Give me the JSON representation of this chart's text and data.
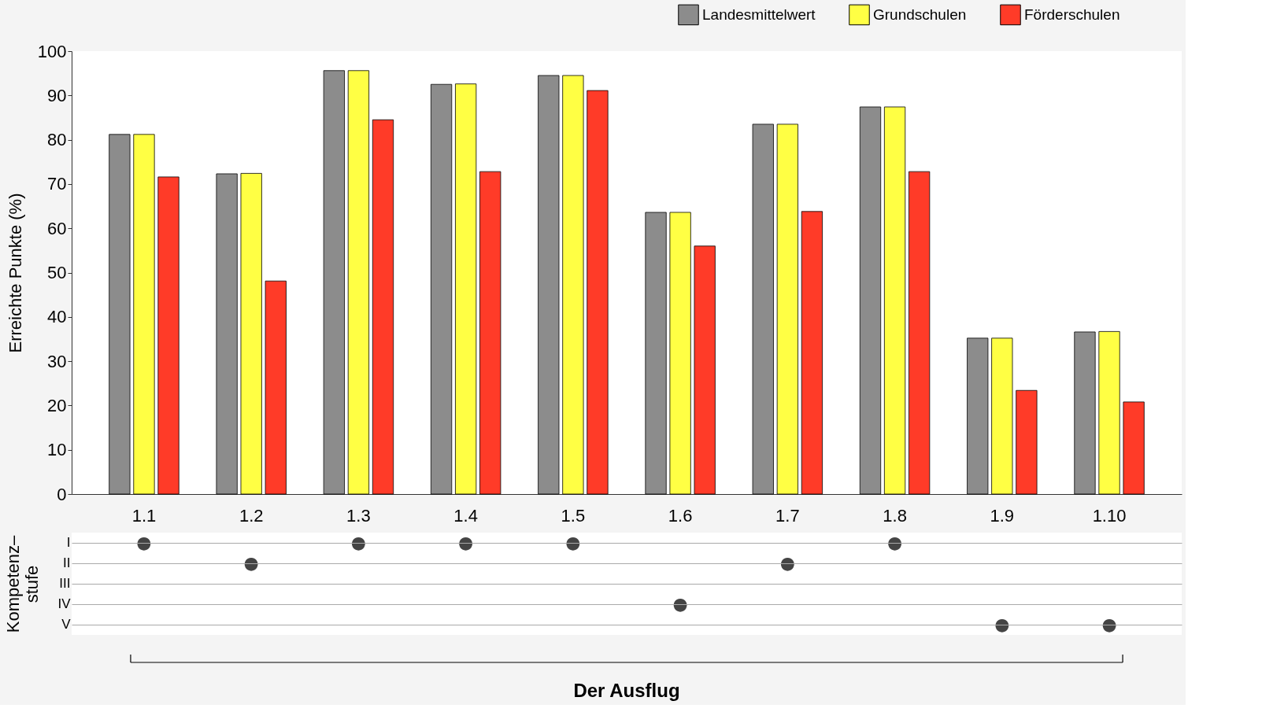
{
  "chart_data": [
    {
      "type": "bar",
      "ylabel": "Erreichte Punkte (%)",
      "categories": [
        "1.1",
        "1.2",
        "1.3",
        "1.4",
        "1.5",
        "1.6",
        "1.7",
        "1.8",
        "1.9",
        "1.10"
      ],
      "series": [
        {
          "name": "Landesmittelwert",
          "color": "#8c8c8c",
          "values": [
            81.2,
            72.3,
            95.6,
            92.5,
            94.5,
            63.6,
            83.5,
            87.4,
            35.2,
            36.6
          ]
        },
        {
          "name": "Grundschulen",
          "color": "#ffff44",
          "values": [
            81.2,
            72.4,
            95.6,
            92.6,
            94.5,
            63.6,
            83.5,
            87.4,
            35.2,
            36.7
          ]
        },
        {
          "name": "Förderschulen",
          "color": "#ff3b28",
          "values": [
            71.6,
            48.1,
            84.5,
            72.8,
            91.1,
            56.0,
            63.8,
            72.8,
            23.4,
            20.8
          ]
        }
      ],
      "ylim": [
        0,
        100
      ],
      "yticks": [
        0,
        10,
        20,
        30,
        40,
        50,
        60,
        70,
        80,
        90,
        100
      ],
      "grid": false,
      "legend": "top right",
      "tick_labels": "y"
    },
    {
      "type": "heatmap",
      "ylabel": "Kompetenz–\nstufe",
      "xlabel": "Der Ausflug",
      "categories": [
        "1.1",
        "1.2",
        "1.3",
        "1.4",
        "1.5",
        "1.6",
        "1.7",
        "1.8",
        "1.9",
        "1.10"
      ],
      "y_categories": [
        "I",
        "II",
        "III",
        "IV",
        "V"
      ],
      "cells": [
        [
          "●",
          null,
          "●",
          "●",
          "●",
          null,
          null,
          "●",
          null,
          null
        ],
        [
          null,
          "●",
          null,
          null,
          null,
          null,
          "●",
          null,
          null,
          null
        ],
        [
          null,
          null,
          null,
          null,
          null,
          null,
          null,
          null,
          null,
          null
        ],
        [
          null,
          null,
          null,
          null,
          null,
          "●",
          null,
          null,
          null,
          null
        ],
        [
          null,
          null,
          null,
          null,
          null,
          null,
          null,
          null,
          "●",
          "●"
        ]
      ],
      "grid": "y"
    }
  ]
}
